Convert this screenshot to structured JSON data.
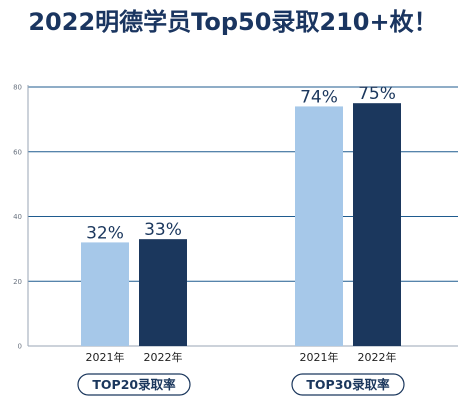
{
  "header": {
    "title": "2022明德学员Top50录取210+枚！"
  },
  "colors": {
    "title": "#1a3560",
    "series_2021": "#a6c8e9",
    "series_2022": "#1b375d",
    "axis": "#9aa6b5",
    "grid": "#1f5b8f",
    "tick_label": "#6a7380",
    "badge_border": "#1b375d",
    "badge_text": "#1b375d"
  },
  "chart_data": {
    "type": "bar",
    "title": "2022明德学员Top50录取210+枚！",
    "xlabel": "",
    "ylabel": "",
    "ylim": [
      0,
      80
    ],
    "yticks": [
      0,
      20,
      40,
      60,
      80
    ],
    "grid": true,
    "groups": [
      {
        "label": "TOP20录取率",
        "bars": [
          {
            "category": "2021年",
            "value": 32,
            "data_label": "32%"
          },
          {
            "category": "2022年",
            "value": 33,
            "data_label": "33%"
          }
        ]
      },
      {
        "label": "TOP30录取率",
        "bars": [
          {
            "category": "2021年",
            "value": 74,
            "data_label": "74%"
          },
          {
            "category": "2022年",
            "value": 75,
            "data_label": "75%"
          }
        ]
      }
    ]
  }
}
